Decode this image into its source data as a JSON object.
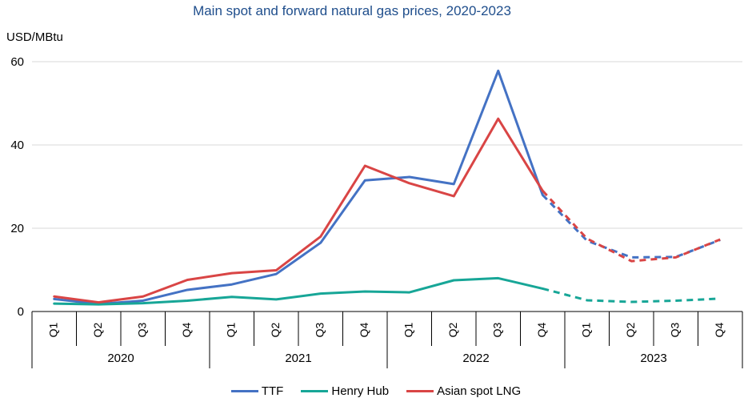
{
  "chart_data": {
    "type": "line",
    "title": "Main spot and forward natural gas prices, 2020-2023",
    "ylabel": "USD/MBtu",
    "ylim": [
      0,
      60
    ],
    "yticks": [
      0,
      20,
      40,
      60
    ],
    "categories": [
      "Q1",
      "Q2",
      "Q3",
      "Q4",
      "Q1",
      "Q2",
      "Q3",
      "Q4",
      "Q1",
      "Q2",
      "Q3",
      "Q4",
      "Q1",
      "Q2",
      "Q3",
      "Q4"
    ],
    "years": [
      "2020",
      "2021",
      "2022",
      "2023"
    ],
    "forward_from_index": 11,
    "series": [
      {
        "name": "TTF",
        "color": "#4472c4",
        "values": [
          3.0,
          1.8,
          2.6,
          5.2,
          6.5,
          9.0,
          16.5,
          31.5,
          32.3,
          30.6,
          57.8,
          28.0,
          17.0,
          13.0,
          13.1,
          17.2
        ]
      },
      {
        "name": "Henry Hub",
        "color": "#17a697",
        "values": [
          1.9,
          1.7,
          2.0,
          2.6,
          3.5,
          2.9,
          4.3,
          4.8,
          4.6,
          7.5,
          8.0,
          5.5,
          2.7,
          2.3,
          2.6,
          3.1
        ]
      },
      {
        "name": "Asian spot LNG",
        "color": "#d94545",
        "values": [
          3.6,
          2.2,
          3.6,
          7.6,
          9.2,
          9.9,
          18.0,
          35.0,
          30.8,
          27.7,
          46.3,
          29.0,
          17.5,
          12.1,
          13.0,
          17.3
        ]
      }
    ]
  }
}
